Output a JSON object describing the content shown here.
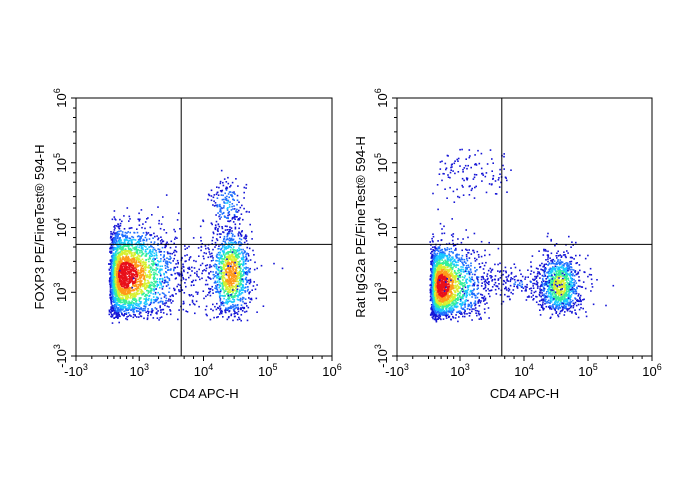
{
  "chart_data": [
    {
      "type": "scatter",
      "subtype": "flow-cytometry-density-dot-plot",
      "title": "",
      "xlabel": "CD4 APC-H",
      "ylabel": "FOXP3 PE/FineTest® 594-H",
      "x_scale": "biexponential",
      "y_scale": "biexponential",
      "xlim": [
        -1000,
        1000000
      ],
      "ylim": [
        -1000,
        1000000
      ],
      "x_tick_labels": [
        {
          "base": "-10",
          "exp": "3",
          "value": -1000
        },
        {
          "base": "10",
          "exp": "3",
          "value": 1000
        },
        {
          "base": "10",
          "exp": "4",
          "value": 10000
        },
        {
          "base": "10",
          "exp": "5",
          "value": 100000
        },
        {
          "base": "10",
          "exp": "6",
          "value": 1000000
        }
      ],
      "y_tick_labels": [
        {
          "base": "-10",
          "exp": "3",
          "value": -1000
        },
        {
          "base": "10",
          "exp": "3",
          "value": 1000
        },
        {
          "base": "10",
          "exp": "4",
          "value": 10000
        },
        {
          "base": "10",
          "exp": "5",
          "value": 100000
        },
        {
          "base": "10",
          "exp": "6",
          "value": 1000000
        }
      ],
      "quadrant_gate": {
        "x": 4500,
        "y": 5500
      },
      "grid": false,
      "colormap": [
        "#1515d6",
        "#1e6fff",
        "#19c8ff",
        "#36f09a",
        "#d8f030",
        "#ff9a1a",
        "#e8101a"
      ],
      "populations": [
        {
          "x_center": 550,
          "y_center": 1900,
          "x_spread": 0.34,
          "y_spread": 0.3,
          "count": 2600,
          "peak": 1.0
        },
        {
          "x_center": 26000,
          "y_center": 2000,
          "x_spread": 0.13,
          "y_spread": 0.28,
          "count": 1100,
          "peak": 0.85
        },
        {
          "x_center": 23000,
          "y_center": 23000,
          "x_spread": 0.12,
          "y_spread": 0.16,
          "count": 160,
          "peak": 0.3
        },
        {
          "x_center": 7000,
          "y_center": 1800,
          "x_spread": 0.35,
          "y_spread": 0.3,
          "count": 160,
          "peak": 0.05
        }
      ]
    },
    {
      "type": "scatter",
      "subtype": "flow-cytometry-density-dot-plot",
      "title": "",
      "xlabel": "CD4 APC-H",
      "ylabel": "Rat IgG2a PE/FineTest® 594-H",
      "x_scale": "biexponential",
      "y_scale": "biexponential",
      "xlim": [
        -1000,
        1000000
      ],
      "ylim": [
        -1000,
        1000000
      ],
      "x_tick_labels": [
        {
          "base": "-10",
          "exp": "3",
          "value": -1000
        },
        {
          "base": "10",
          "exp": "3",
          "value": 1000
        },
        {
          "base": "10",
          "exp": "4",
          "value": 10000
        },
        {
          "base": "10",
          "exp": "5",
          "value": 100000
        },
        {
          "base": "10",
          "exp": "6",
          "value": 1000000
        }
      ],
      "y_tick_labels": [
        {
          "base": "-10",
          "exp": "3",
          "value": -1000
        },
        {
          "base": "10",
          "exp": "3",
          "value": 1000
        },
        {
          "base": "10",
          "exp": "4",
          "value": 10000
        },
        {
          "base": "10",
          "exp": "5",
          "value": 100000
        },
        {
          "base": "10",
          "exp": "6",
          "value": 1000000
        }
      ],
      "quadrant_gate": {
        "x": 4500,
        "y": 5500
      },
      "grid": false,
      "colormap": [
        "#1515d6",
        "#1e6fff",
        "#19c8ff",
        "#36f09a",
        "#d8f030",
        "#ff9a1a",
        "#e8101a"
      ],
      "populations": [
        {
          "x_center": 400,
          "y_center": 1300,
          "x_spread": 0.3,
          "y_spread": 0.26,
          "count": 2200,
          "peak": 1.0
        },
        {
          "x_center": 35000,
          "y_center": 1300,
          "x_spread": 0.13,
          "y_spread": 0.2,
          "count": 1000,
          "peak": 0.7
        },
        {
          "x_center": 9000,
          "y_center": 1400,
          "x_spread": 0.45,
          "y_spread": 0.12,
          "count": 260,
          "peak": 0.15
        },
        {
          "x_center": 1500,
          "y_center": 70000,
          "x_spread": 0.3,
          "y_spread": 0.16,
          "count": 120,
          "peak": 0.1
        }
      ]
    }
  ]
}
